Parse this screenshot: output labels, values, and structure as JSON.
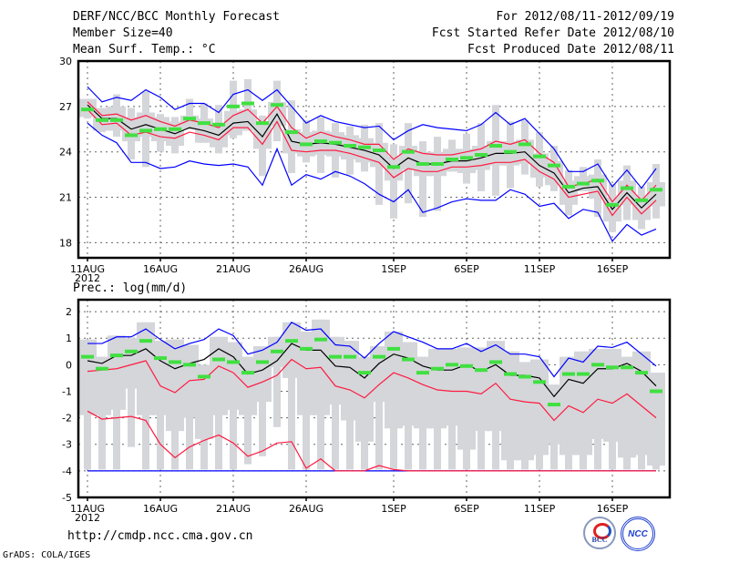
{
  "header": {
    "title": "DERF/NCC/BCC Monthly Forecast",
    "member_size": "Member Size=40",
    "variable": "Mean Surf. Temp.: °C",
    "period": "For 2012/08/11-2012/09/19",
    "started": "Fcst Started Refer Date 2012/08/10",
    "produced": "Fcst Produced Date 2012/08/11"
  },
  "footer": {
    "url": "http://cmdp.ncc.cma.gov.cn",
    "grads": "GrADS: COLA/IGES",
    "logo_bcc": "BCC",
    "logo_ncc": "NCC"
  },
  "colors": {
    "mean": "#000000",
    "spread": "#ff1a40",
    "range": "#0000ff",
    "obs": "#40e040",
    "bars": "#d4d6da"
  },
  "chart_data": [
    {
      "type": "line",
      "title": "Mean Surf. Temp.: °C",
      "start_date": "2012-08-11",
      "days": 40,
      "ylim": [
        17,
        30
      ],
      "yticks": [
        "30",
        "27",
        "24",
        "21",
        "18"
      ],
      "ytick_values": [
        30,
        27,
        24,
        21,
        18
      ],
      "xticks": [
        {
          "day": 0,
          "label": "11AUG",
          "sub": "2012"
        },
        {
          "day": 5,
          "label": "16AUG"
        },
        {
          "day": 10,
          "label": "21AUG"
        },
        {
          "day": 15,
          "label": "26AUG"
        },
        {
          "day": 21,
          "label": "1SEP"
        },
        {
          "day": 26,
          "label": "6SEP"
        },
        {
          "day": 31,
          "label": "11SEP"
        },
        {
          "day": 36,
          "label": "16SEP"
        }
      ],
      "grid": true,
      "series": [
        {
          "name": "ensemble mean",
          "color": "mean",
          "values": [
            27.1,
            26.2,
            26.2,
            25.5,
            25.8,
            25.5,
            25.2,
            25.6,
            25.4,
            25.1,
            25.9,
            26.0,
            25.0,
            26.5,
            24.7,
            24.5,
            24.6,
            24.5,
            24.3,
            24.1,
            23.8,
            22.9,
            23.6,
            23.2,
            23.2,
            23.4,
            23.4,
            23.6,
            23.9,
            23.9,
            24.0,
            23.1,
            22.6,
            21.3,
            21.6,
            21.7,
            20.2,
            21.3,
            20.3,
            21.2
          ]
        },
        {
          "name": "upper spread",
          "color": "spread",
          "values": [
            27.3,
            26.4,
            26.5,
            26.1,
            26.4,
            26.0,
            25.7,
            26.1,
            25.9,
            25.6,
            26.4,
            26.8,
            25.9,
            27.0,
            25.6,
            24.9,
            25.3,
            25.0,
            24.8,
            24.5,
            24.5,
            23.5,
            24.2,
            23.9,
            23.8,
            23.8,
            24.0,
            24.2,
            24.7,
            24.5,
            24.8,
            23.9,
            23.3,
            21.7,
            21.9,
            22.2,
            20.7,
            21.8,
            20.8,
            21.8
          ]
        },
        {
          "name": "lower spread",
          "color": "spread",
          "values": [
            26.8,
            25.8,
            25.9,
            25.1,
            25.3,
            25.0,
            24.9,
            25.3,
            25.1,
            24.8,
            25.6,
            25.6,
            24.5,
            26.0,
            24.1,
            24.0,
            24.1,
            24.1,
            23.9,
            23.6,
            23.3,
            22.3,
            22.9,
            22.7,
            22.7,
            23.0,
            23.0,
            23.1,
            23.3,
            23.3,
            23.5,
            22.7,
            22.2,
            21.0,
            21.2,
            21.4,
            19.8,
            21.0,
            19.9,
            20.8
          ]
        },
        {
          "name": "ensemble max",
          "color": "range",
          "values": [
            28.3,
            27.3,
            27.6,
            27.4,
            28.1,
            27.6,
            26.8,
            27.2,
            27.2,
            26.6,
            27.8,
            28.1,
            27.4,
            28.1,
            27.0,
            25.9,
            26.4,
            26.0,
            25.8,
            25.6,
            25.7,
            24.8,
            25.4,
            25.8,
            25.6,
            25.5,
            25.4,
            25.8,
            26.6,
            25.8,
            26.2,
            25.2,
            24.2,
            22.7,
            22.7,
            23.2,
            21.7,
            22.8,
            21.6,
            22.9
          ]
        },
        {
          "name": "ensemble min",
          "color": "range",
          "values": [
            25.9,
            25.1,
            24.6,
            23.3,
            23.3,
            22.9,
            23.0,
            23.4,
            23.2,
            23.1,
            23.2,
            23.0,
            21.8,
            24.2,
            21.8,
            22.5,
            22.2,
            22.7,
            22.4,
            21.9,
            21.2,
            20.7,
            21.5,
            20.0,
            20.3,
            20.7,
            20.9,
            20.8,
            20.8,
            21.5,
            21.2,
            20.4,
            20.6,
            19.6,
            20.2,
            20.0,
            18.1,
            19.2,
            18.5,
            18.9
          ]
        }
      ],
      "bars": {
        "hi": [
          27.5,
          26.9,
          27.8,
          26.9,
          28.0,
          26.5,
          26.3,
          27.5,
          27.2,
          27.1,
          28.7,
          28.8,
          26.4,
          28.7,
          27.4,
          26.1,
          26.3,
          25.9,
          25.7,
          25.8,
          25.9,
          24.5,
          25.9,
          24.7,
          25.0,
          24.8,
          25.2,
          25.9,
          27.1,
          26.0,
          26.1,
          25.3,
          24.4,
          22.8,
          23.0,
          23.5,
          21.9,
          23.1,
          21.7,
          23.2
        ],
        "lo": [
          26.2,
          25.3,
          25.0,
          23.5,
          23.0,
          24.0,
          23.9,
          25.5,
          24.6,
          23.9,
          24.9,
          25.4,
          22.4,
          24.7,
          22.6,
          23.3,
          22.6,
          22.3,
          22.5,
          22.7,
          20.5,
          19.6,
          20.6,
          19.7,
          20.1,
          22.7,
          21.9,
          21.4,
          21.1,
          21.6,
          22.5,
          21.7,
          21.4,
          19.8,
          21.4,
          19.7,
          18.7,
          19.5,
          18.9,
          19.6
        ]
      },
      "observed": [
        26.8,
        26.1,
        26.1,
        25.1,
        25.4,
        25.5,
        25.5,
        26.2,
        25.9,
        25.8,
        27.0,
        27.2,
        25.9,
        27.1,
        25.3,
        24.5,
        24.7,
        24.6,
        24.4,
        24.3,
        24.1,
        23.0,
        24.0,
        23.2,
        23.2,
        23.5,
        23.6,
        23.8,
        24.4,
        24.0,
        24.5,
        23.7,
        23.1,
        21.7,
        21.9,
        22.1,
        20.5,
        21.6,
        20.8,
        21.5
      ]
    },
    {
      "type": "line",
      "title": "Prec.: log(mm/d)",
      "start_date": "2012-08-11",
      "days": 40,
      "ylim": [
        -5,
        2.45
      ],
      "yticks": [
        "2",
        "1",
        "0",
        "-1",
        "-2",
        "-3",
        "-4",
        "-5"
      ],
      "ytick_values": [
        2,
        1,
        0,
        -1,
        -2,
        -3,
        -4,
        -5
      ],
      "xticks": [
        {
          "day": 0,
          "label": "11AUG",
          "sub": "2012"
        },
        {
          "day": 5,
          "label": "16AUG"
        },
        {
          "day": 10,
          "label": "21AUG"
        },
        {
          "day": 15,
          "label": "26AUG"
        },
        {
          "day": 21,
          "label": "1SEP"
        },
        {
          "day": 26,
          "label": "6SEP"
        },
        {
          "day": 31,
          "label": "11SEP"
        },
        {
          "day": 36,
          "label": "16SEP"
        }
      ],
      "grid": true,
      "series": [
        {
          "name": "ensemble min",
          "color": "range",
          "values": [
            -4,
            -4,
            -4,
            -4,
            -4,
            -4,
            -4,
            -4,
            -4,
            -4,
            -4,
            -4,
            -4,
            -4,
            -4,
            -4,
            -4,
            -4,
            -4,
            -4,
            -4,
            -4,
            -4,
            -4,
            -4,
            -4,
            -4,
            -4,
            -4,
            -4,
            -4,
            -4,
            -4,
            -4,
            -4,
            -4,
            -4,
            -4,
            -4,
            -4
          ]
        },
        {
          "name": "ensemble max",
          "color": "range",
          "values": [
            0.8,
            0.8,
            1.05,
            1.05,
            1.35,
            0.95,
            0.6,
            0.8,
            0.95,
            1.35,
            1.1,
            0.4,
            0.55,
            0.85,
            1.6,
            1.3,
            1.35,
            0.75,
            0.7,
            0.25,
            0.8,
            1.25,
            1.05,
            0.85,
            0.6,
            0.6,
            0.8,
            0.5,
            0.75,
            0.4,
            0.4,
            0.3,
            -0.45,
            0.25,
            0.1,
            0.7,
            0.65,
            0.85,
            0.4,
            -0.05
          ]
        },
        {
          "name": "upper spread",
          "color": "spread",
          "values": [
            -0.25,
            -0.2,
            -0.15,
            0.0,
            0.15,
            -0.8,
            -1.05,
            -0.6,
            -0.55,
            -0.05,
            -0.3,
            -0.85,
            -0.65,
            -0.4,
            0.2,
            -0.15,
            -0.1,
            -0.8,
            -0.95,
            -1.25,
            -0.75,
            -0.3,
            -0.5,
            -0.75,
            -0.95,
            -1.0,
            -1.0,
            -1.1,
            -0.7,
            -1.3,
            -1.4,
            -1.45,
            -2.1,
            -1.55,
            -1.8,
            -1.3,
            -1.45,
            -1.1,
            -1.55,
            -2.0
          ]
        },
        {
          "name": "lower spread",
          "color": "spread",
          "values": [
            -1.75,
            -2.05,
            -2.0,
            -1.95,
            -2.1,
            -3.0,
            -3.5,
            -3.1,
            -2.85,
            -2.65,
            -2.95,
            -3.45,
            -3.25,
            -2.95,
            -2.9,
            -3.9,
            -3.55,
            -4,
            -4,
            -4,
            -3.8,
            -3.95,
            -4,
            -4,
            -4,
            -4,
            -4,
            -4,
            -4,
            -4,
            -4,
            -4,
            -4,
            -4,
            -4,
            -4,
            -4,
            -4,
            -4,
            -4
          ]
        },
        {
          "name": "ensemble mean",
          "color": "mean",
          "values": [
            0.15,
            0.05,
            0.35,
            0.35,
            0.6,
            0.15,
            -0.15,
            0.05,
            0.2,
            0.6,
            0.3,
            -0.35,
            -0.2,
            0.15,
            0.8,
            0.55,
            0.55,
            -0.05,
            -0.1,
            -0.5,
            0.05,
            0.4,
            0.25,
            -0.05,
            -0.2,
            -0.2,
            0.0,
            -0.25,
            0.0,
            -0.4,
            -0.4,
            -0.5,
            -1.2,
            -0.55,
            -0.7,
            -0.15,
            -0.15,
            0.05,
            -0.25,
            -0.8
          ]
        }
      ],
      "bars": {
        "hi": [
          0.95,
          0.3,
          1.1,
          1.0,
          1.6,
          0.9,
          0.95,
          0.75,
          0.0,
          1.05,
          0.85,
          0.3,
          0.7,
          1.05,
          1.6,
          1.25,
          1.7,
          1.05,
          0.9,
          0.3,
          0.7,
          1.25,
          0.85,
          0.3,
          0.6,
          0.6,
          0.65,
          0.65,
          0.9,
          0.5,
          0.1,
          0.2,
          -0.75,
          0.3,
          0.5,
          0.6,
          0.6,
          0.3,
          0.5,
          -0.3
        ],
        "box_lo": [
          -1.9,
          -1.9,
          -1.7,
          -0.9,
          -1.9,
          -1.9,
          -2.5,
          -2.0,
          -2.8,
          -1.9,
          -1.7,
          -1.9,
          -1.4,
          -0.1,
          -0.5,
          -1.9,
          -1.9,
          -1.5,
          -2.1,
          -2.9,
          -1.4,
          -2.4,
          -2.3,
          -2.4,
          -2.4,
          -2.3,
          -3.2,
          -2.5,
          -2.5,
          -3.6,
          -3.6,
          -3.4,
          -3.0,
          -3.4,
          -3.4,
          -2.8,
          -2.9,
          -3.5,
          -3.4,
          -3.8
        ],
        "lo": [
          -3.95,
          -3.95,
          -3.95,
          -3.1,
          -3.95,
          -3.95,
          -3.95,
          -3.95,
          -3.95,
          -3.95,
          -3.95,
          -3.75,
          -3.45,
          -2.35,
          -3.95,
          -3.95,
          -3.95,
          -3.95,
          -3.95,
          -3.95,
          -3.95,
          -3.95,
          -3.95,
          -3.95,
          -3.95,
          -3.95,
          -3.95,
          -3.95,
          -3.95,
          -3.95,
          -3.95,
          -3.95,
          -3.95,
          -3.95,
          -3.95,
          -3.95,
          -3.95,
          -3.95,
          -3.95,
          -3.95
        ]
      },
      "observed": [
        0.3,
        -0.15,
        0.35,
        0.5,
        0.9,
        0.25,
        0.1,
        0.0,
        -0.45,
        0.2,
        0.1,
        -0.3,
        0.1,
        0.5,
        0.9,
        0.6,
        0.95,
        0.3,
        0.3,
        -0.3,
        0.3,
        0.6,
        0.2,
        -0.3,
        -0.15,
        0.0,
        -0.05,
        -0.2,
        0.1,
        -0.35,
        -0.45,
        -0.65,
        -1.5,
        -0.35,
        -0.35,
        0.0,
        -0.1,
        -0.1,
        -0.3,
        -1.0
      ]
    }
  ]
}
